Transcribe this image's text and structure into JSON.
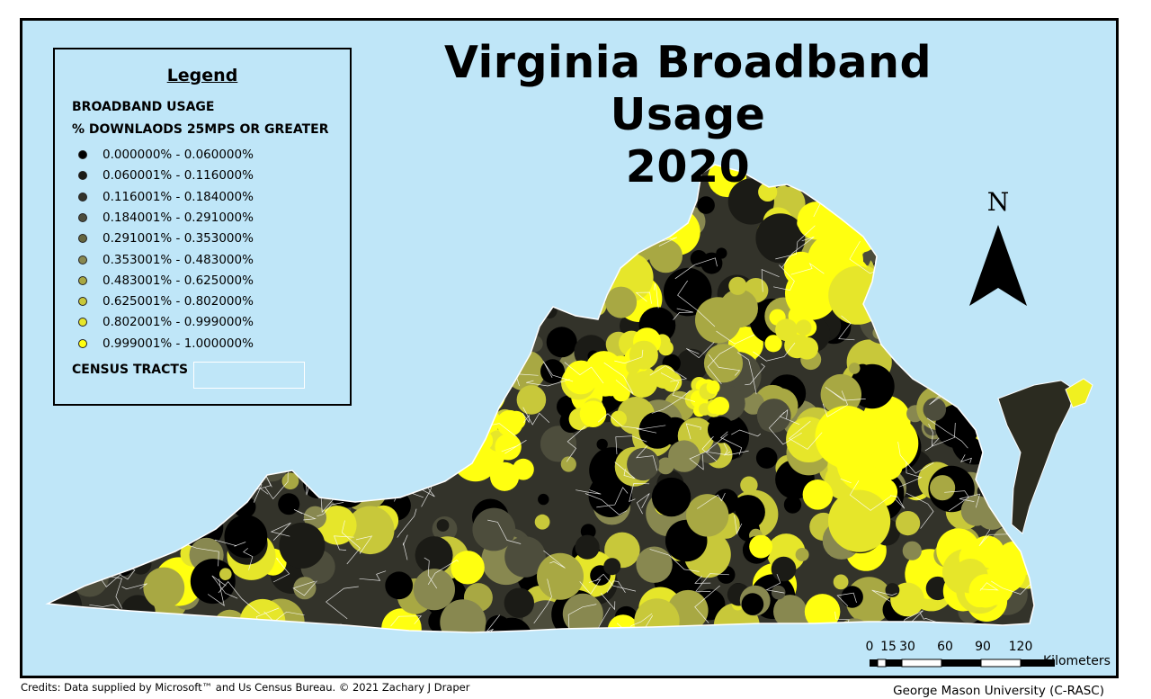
{
  "map": {
    "title_line1": "Virginia Broadband Usage",
    "title_line2": "2020",
    "north_label": "N",
    "colors": {
      "water": "#bfe6f8",
      "classes": [
        "#000000",
        "#1b1b16",
        "#33332a",
        "#4d4d3c",
        "#66663f",
        "#888850",
        "#a8a843",
        "#c8c83a",
        "#e6e62a",
        "#ffff10"
      ],
      "tract_lines": "#ffffff"
    }
  },
  "legend": {
    "title": "Legend",
    "heading1": "BROADBAND USAGE",
    "heading2": "% DOWNLAODS 25MPS  OR GREATER",
    "items": [
      {
        "label": "0.000000% - 0.060000%",
        "color": "#000000"
      },
      {
        "label": "0.060001% - 0.116000%",
        "color": "#1b1b16"
      },
      {
        "label": "0.116001% - 0.184000%",
        "color": "#33332a"
      },
      {
        "label": "0.184001% - 0.291000%",
        "color": "#4d4d3c"
      },
      {
        "label": "0.291001% - 0.353000%",
        "color": "#66663f"
      },
      {
        "label": "0.353001% - 0.483000%",
        "color": "#888850"
      },
      {
        "label": "0.483001% - 0.625000%",
        "color": "#a8a843"
      },
      {
        "label": "0.625001% - 0.802000%",
        "color": "#c8c83a"
      },
      {
        "label": "0.802001% - 0.999000%",
        "color": "#e6e62a"
      },
      {
        "label": "0.999001% - 1.000000%",
        "color": "#ffff10"
      }
    ],
    "tracts_label": "CENSUS TRACTS"
  },
  "scale_bar": {
    "ticks": [
      "0",
      "15",
      "30",
      "60",
      "90",
      "120"
    ],
    "tick_values": [
      0,
      15,
      30,
      60,
      90,
      120
    ],
    "unit": "Kilometers"
  },
  "credits": "Credits: Data supplied by Microsoft™ and Us Census Bureau.  © 2021 Zachary J Draper",
  "organization": "George Mason University (C-RASC)"
}
